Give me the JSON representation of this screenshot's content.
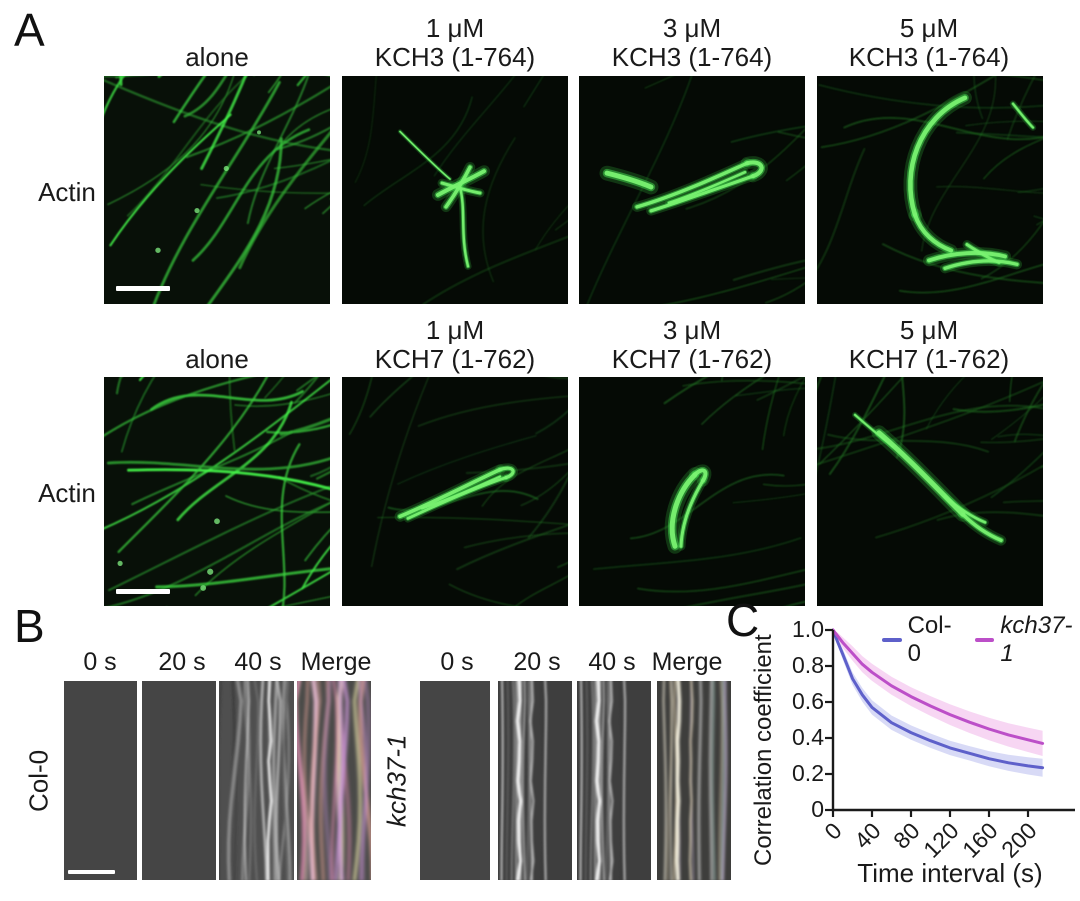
{
  "figure_labels": {
    "a": "A",
    "b": "B",
    "c": "C"
  },
  "panel_a": {
    "row_label_1": "Actin",
    "row_label_2": "Actin",
    "rows": [
      {
        "columns": [
          {
            "l1": "",
            "l2": "alone"
          },
          {
            "l1": "1 μM",
            "l2": "KCH3 (1-764)"
          },
          {
            "l1": "3 μM",
            "l2": "KCH3 (1-764)"
          },
          {
            "l1": "5 μM",
            "l2": "KCH3 (1-764)"
          }
        ]
      },
      {
        "columns": [
          {
            "l1": "",
            "l2": "alone"
          },
          {
            "l1": "1 μM",
            "l2": "KCH7 (1-762)"
          },
          {
            "l1": "3 μM",
            "l2": "KCH7 (1-762)"
          },
          {
            "l1": "5 μM",
            "l2": "KCH7 (1-762)"
          }
        ]
      }
    ]
  },
  "panel_b": {
    "groups": [
      {
        "row_label": "Col-0",
        "italic": false,
        "titles": [
          "0 s",
          "20 s",
          "40 s",
          "Merge"
        ]
      },
      {
        "row_label": "kch37-1",
        "italic": true,
        "titles": [
          "0 s",
          "20 s",
          "40 s",
          "Merge"
        ]
      }
    ]
  },
  "chart_data": {
    "type": "line",
    "title": "",
    "xlabel": "Time interval (s)",
    "ylabel": "Correlation coefficient",
    "xlim": [
      0,
      248
    ],
    "ylim": [
      0,
      1.0
    ],
    "x_ticks": [
      0,
      40,
      80,
      120,
      160,
      200
    ],
    "y_ticks": [
      "1.0",
      "0.8",
      "0.6",
      "0.4",
      "0.2",
      "0"
    ],
    "y_tick_values": [
      1.0,
      0.8,
      0.6,
      0.4,
      0.2,
      0
    ],
    "grid": false,
    "legend_position": "top-right",
    "x": [
      0,
      5,
      10,
      20,
      30,
      40,
      60,
      80,
      100,
      120,
      140,
      160,
      180,
      200,
      215
    ],
    "series": [
      {
        "name": "Col-0",
        "italic": false,
        "color": "#5e60ca",
        "band_color": "rgba(125,133,224,0.30)",
        "values": [
          1.0,
          0.93,
          0.865,
          0.73,
          0.64,
          0.57,
          0.485,
          0.43,
          0.385,
          0.345,
          0.315,
          0.285,
          0.262,
          0.245,
          0.235
        ],
        "band": [
          0.004,
          0.02,
          0.03,
          0.035,
          0.038,
          0.04,
          0.04,
          0.04,
          0.04,
          0.04,
          0.04,
          0.042,
          0.045,
          0.048,
          0.05
        ]
      },
      {
        "name": "kch37-1",
        "italic": true,
        "color": "#bc4fc8",
        "band_color": "rgba(236,152,226,0.40)",
        "values": [
          1.0,
          0.965,
          0.93,
          0.87,
          0.81,
          0.765,
          0.69,
          0.63,
          0.578,
          0.53,
          0.488,
          0.45,
          0.417,
          0.39,
          0.37
        ],
        "band": [
          0.004,
          0.02,
          0.03,
          0.04,
          0.045,
          0.048,
          0.05,
          0.052,
          0.055,
          0.058,
          0.06,
          0.062,
          0.065,
          0.068,
          0.07
        ]
      }
    ]
  }
}
